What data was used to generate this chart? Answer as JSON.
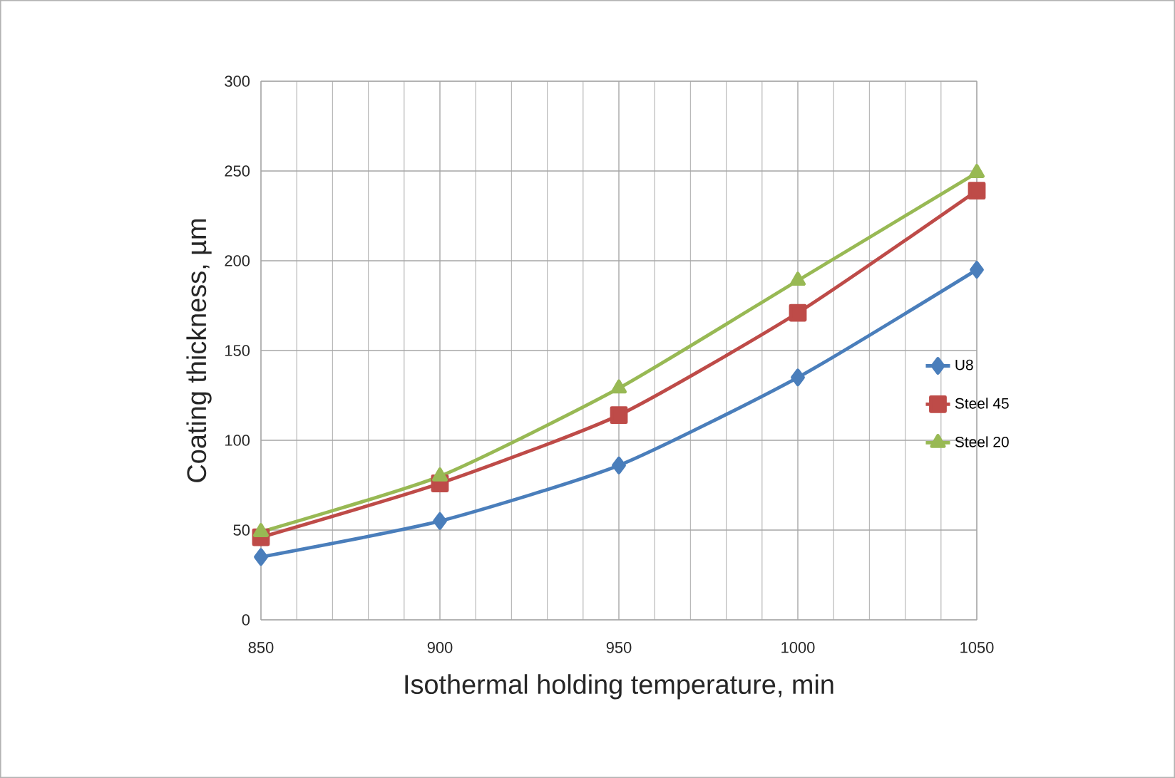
{
  "chart_data": {
    "type": "line",
    "xlabel": "Isothermal holding temperature, min",
    "ylabel": "Coating thickness, µm",
    "x": [
      850,
      900,
      950,
      1000,
      1050
    ],
    "series": [
      {
        "name": "U8",
        "color": "#4a7ebb",
        "marker": "diamond",
        "values": [
          35,
          55,
          86,
          135,
          195
        ]
      },
      {
        "name": "Steel 45",
        "color": "#be4b48",
        "marker": "square",
        "values": [
          46,
          76,
          114,
          171,
          239
        ]
      },
      {
        "name": "Steel 20",
        "color": "#98b954",
        "marker": "triangle",
        "values": [
          49,
          80,
          129,
          189,
          249
        ]
      }
    ],
    "xlim": [
      850,
      1050
    ],
    "xticks": [
      850,
      900,
      950,
      1000,
      1050
    ],
    "ylim": [
      0,
      300
    ],
    "yticks": [
      0,
      50,
      100,
      150,
      200,
      250,
      300
    ],
    "grid": true,
    "legend": "right",
    "line_style": "solid"
  }
}
